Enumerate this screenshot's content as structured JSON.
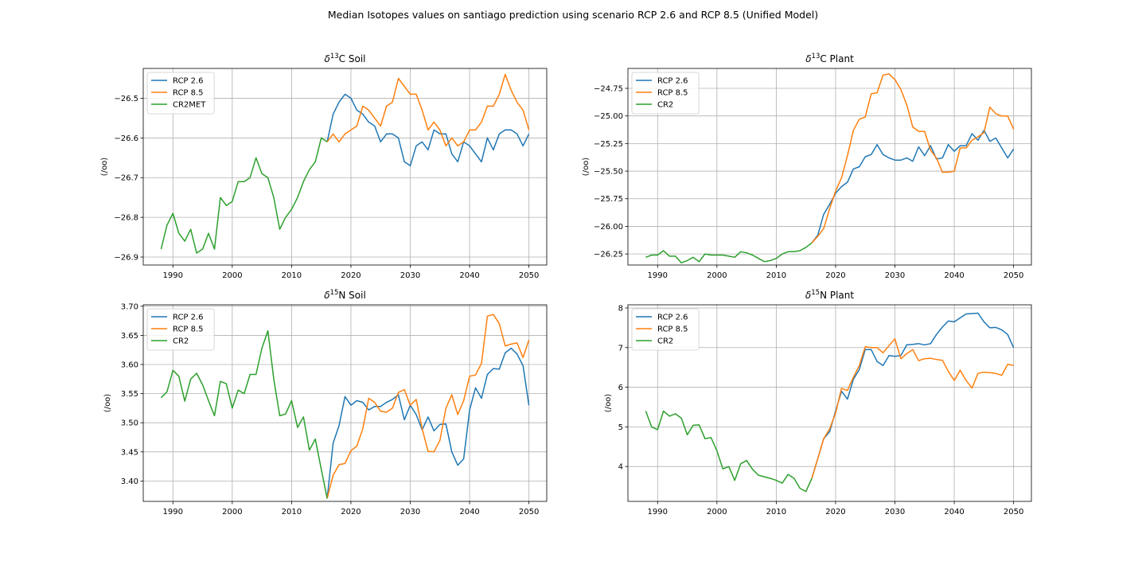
{
  "figure": {
    "suptitle": "Median Isotopes values on santiago prediction using scenario RCP 2.6 and RCP 8.5 (Unified Model)"
  },
  "colors": {
    "rcp26": "#1f77b4",
    "rcp85": "#ff7f0e",
    "historic": "#2ca02c",
    "grid": "#b0b0b0"
  },
  "chart_data": [
    {
      "type": "line",
      "title_main": "δ",
      "title_sup": "13",
      "title_rest": "C Soil",
      "ylabel": "(/oo)",
      "xlim": [
        1985,
        2053
      ],
      "ylim": [
        -26.92,
        -26.425
      ],
      "xticks": [
        1990,
        2000,
        2010,
        2020,
        2030,
        2040,
        2050
      ],
      "yticks": [
        -26.9,
        -26.8,
        -26.7,
        -26.6,
        -26.5
      ],
      "ytick_labels": [
        "−26.9",
        "−26.8",
        "−26.7",
        "−26.6",
        "−26.5"
      ],
      "grid": true,
      "legend": "top-left",
      "series": [
        {
          "name": "RCP 2.6",
          "color": "#1f77b4",
          "x": [
            2016,
            2017,
            2018,
            2019,
            2020,
            2021,
            2022,
            2023,
            2024,
            2025,
            2026,
            2027,
            2028,
            2029,
            2030,
            2031,
            2032,
            2033,
            2034,
            2035,
            2036,
            2037,
            2038,
            2039,
            2040,
            2041,
            2042,
            2043,
            2044,
            2045,
            2046,
            2047,
            2048,
            2049,
            2050
          ],
          "y": [
            -26.61,
            -26.54,
            -26.51,
            -26.49,
            -26.5,
            -26.53,
            -26.54,
            -26.56,
            -26.57,
            -26.61,
            -26.59,
            -26.59,
            -26.6,
            -26.66,
            -26.67,
            -26.62,
            -26.61,
            -26.63,
            -26.58,
            -26.59,
            -26.59,
            -26.64,
            -26.66,
            -26.61,
            -26.62,
            -26.64,
            -26.66,
            -26.6,
            -26.63,
            -26.59,
            -26.58,
            -26.58,
            -26.59,
            -26.62,
            -26.59
          ]
        },
        {
          "name": "RCP 8.5",
          "color": "#ff7f0e",
          "x": [
            2016,
            2017,
            2018,
            2019,
            2020,
            2021,
            2022,
            2023,
            2024,
            2025,
            2026,
            2027,
            2028,
            2029,
            2030,
            2031,
            2032,
            2033,
            2034,
            2035,
            2036,
            2037,
            2038,
            2039,
            2040,
            2041,
            2042,
            2043,
            2044,
            2045,
            2046,
            2047,
            2048,
            2049,
            2050
          ],
          "y": [
            -26.61,
            -26.59,
            -26.61,
            -26.59,
            -26.58,
            -26.57,
            -26.52,
            -26.53,
            -26.55,
            -26.57,
            -26.52,
            -26.51,
            -26.45,
            -26.47,
            -26.49,
            -26.49,
            -26.53,
            -26.58,
            -26.56,
            -26.58,
            -26.62,
            -26.6,
            -26.62,
            -26.61,
            -26.58,
            -26.58,
            -26.56,
            -26.52,
            -26.52,
            -26.49,
            -26.44,
            -26.48,
            -26.51,
            -26.53,
            -26.58
          ]
        },
        {
          "name": "CR2MET",
          "color": "#2ca02c",
          "x": [
            1988,
            1989,
            1990,
            1991,
            1992,
            1993,
            1994,
            1995,
            1996,
            1997,
            1998,
            1999,
            2000,
            2001,
            2002,
            2003,
            2004,
            2005,
            2006,
            2007,
            2008,
            2009,
            2010,
            2011,
            2012,
            2013,
            2014,
            2015,
            2016
          ],
          "y": [
            -26.88,
            -26.82,
            -26.79,
            -26.84,
            -26.86,
            -26.83,
            -26.89,
            -26.88,
            -26.84,
            -26.88,
            -26.75,
            -26.77,
            -26.76,
            -26.71,
            -26.71,
            -26.7,
            -26.65,
            -26.69,
            -26.7,
            -26.75,
            -26.83,
            -26.8,
            -26.78,
            -26.75,
            -26.71,
            -26.68,
            -26.66,
            -26.6,
            -26.61
          ]
        }
      ]
    },
    {
      "type": "line",
      "title_main": "δ",
      "title_sup": "13",
      "title_rest": "C Plant",
      "ylabel": "(/oo)",
      "xlim": [
        1985,
        2053
      ],
      "ylim": [
        -26.35,
        -24.57
      ],
      "xticks": [
        1990,
        2000,
        2010,
        2020,
        2030,
        2040,
        2050
      ],
      "yticks": [
        -26.25,
        -26.0,
        -25.75,
        -25.5,
        -25.25,
        -25.0,
        -24.75
      ],
      "ytick_labels": [
        "−26.25",
        "−26.00",
        "−25.75",
        "−25.50",
        "−25.25",
        "−25.00",
        "−24.75"
      ],
      "grid": true,
      "legend": "top-left",
      "series": [
        {
          "name": "RCP 2.6",
          "color": "#1f77b4",
          "x": [
            2016,
            2017,
            2018,
            2019,
            2020,
            2021,
            2022,
            2023,
            2024,
            2025,
            2026,
            2027,
            2028,
            2029,
            2030,
            2031,
            2032,
            2033,
            2034,
            2035,
            2036,
            2037,
            2038,
            2039,
            2040,
            2041,
            2042,
            2043,
            2044,
            2045,
            2046,
            2047,
            2048,
            2049,
            2050
          ],
          "y": [
            -26.15,
            -26.08,
            -25.89,
            -25.8,
            -25.7,
            -25.64,
            -25.6,
            -25.48,
            -25.46,
            -25.37,
            -25.35,
            -25.26,
            -25.35,
            -25.38,
            -25.4,
            -25.4,
            -25.38,
            -25.41,
            -25.28,
            -25.36,
            -25.27,
            -25.39,
            -25.38,
            -25.26,
            -25.32,
            -25.27,
            -25.27,
            -25.16,
            -25.22,
            -25.13,
            -25.23,
            -25.2,
            -25.29,
            -25.38,
            -25.3
          ]
        },
        {
          "name": "RCP 8.5",
          "color": "#ff7f0e",
          "x": [
            2016,
            2017,
            2018,
            2019,
            2020,
            2021,
            2022,
            2023,
            2024,
            2025,
            2026,
            2027,
            2028,
            2029,
            2030,
            2031,
            2032,
            2033,
            2034,
            2035,
            2036,
            2037,
            2038,
            2039,
            2040,
            2041,
            2042,
            2043,
            2044,
            2045,
            2046,
            2047,
            2048,
            2049,
            2050
          ],
          "y": [
            -26.15,
            -26.09,
            -26.02,
            -25.84,
            -25.68,
            -25.56,
            -25.36,
            -25.13,
            -25.03,
            -25.01,
            -24.8,
            -24.79,
            -24.63,
            -24.62,
            -24.67,
            -24.76,
            -24.9,
            -25.1,
            -25.14,
            -25.14,
            -25.31,
            -25.38,
            -25.51,
            -25.51,
            -25.5,
            -25.29,
            -25.29,
            -25.22,
            -25.19,
            -25.15,
            -24.92,
            -24.98,
            -25.0,
            -25.0,
            -25.12
          ]
        },
        {
          "name": "CR2",
          "color": "#2ca02c",
          "x": [
            1988,
            1989,
            1990,
            1991,
            1992,
            1993,
            1994,
            1995,
            1996,
            1997,
            1998,
            1999,
            2000,
            2001,
            2002,
            2003,
            2004,
            2005,
            2006,
            2007,
            2008,
            2009,
            2010,
            2011,
            2012,
            2013,
            2014,
            2015,
            2016
          ],
          "y": [
            -26.28,
            -26.26,
            -26.26,
            -26.22,
            -26.27,
            -26.27,
            -26.33,
            -26.31,
            -26.28,
            -26.32,
            -26.25,
            -26.26,
            -26.26,
            -26.26,
            -26.27,
            -26.28,
            -26.23,
            -26.24,
            -26.26,
            -26.29,
            -26.32,
            -26.31,
            -26.29,
            -26.25,
            -26.23,
            -26.23,
            -26.22,
            -26.19,
            -26.15
          ]
        }
      ]
    },
    {
      "type": "line",
      "title_main": "δ",
      "title_sup": "15",
      "title_rest": "N Soil",
      "ylabel": "(/oo)",
      "xlim": [
        1985,
        2053
      ],
      "ylim": [
        3.365,
        3.7025
      ],
      "xticks": [
        1990,
        2000,
        2010,
        2020,
        2030,
        2040,
        2050
      ],
      "yticks": [
        3.4,
        3.45,
        3.5,
        3.55,
        3.6,
        3.65,
        3.7
      ],
      "ytick_labels": [
        "3.40",
        "3.45",
        "3.50",
        "3.55",
        "3.60",
        "3.65",
        "3.70"
      ],
      "grid": true,
      "legend": "top-left",
      "series": [
        {
          "name": "RCP 2.6",
          "color": "#1f77b4",
          "x": [
            2016,
            2017,
            2018,
            2019,
            2020,
            2021,
            2022,
            2023,
            2024,
            2025,
            2026,
            2027,
            2028,
            2029,
            2030,
            2031,
            2032,
            2033,
            2034,
            2035,
            2036,
            2037,
            2038,
            2039,
            2040,
            2041,
            2042,
            2043,
            2044,
            2045,
            2046,
            2047,
            2048,
            2049,
            2050
          ],
          "y": [
            3.37,
            3.465,
            3.495,
            3.545,
            3.53,
            3.538,
            3.535,
            3.522,
            3.528,
            3.528,
            3.535,
            3.54,
            3.548,
            3.505,
            3.53,
            3.514,
            3.488,
            3.51,
            3.486,
            3.497,
            3.498,
            3.45,
            3.427,
            3.438,
            3.522,
            3.56,
            3.542,
            3.583,
            3.593,
            3.592,
            3.62,
            3.628,
            3.618,
            3.598,
            3.53
          ]
        },
        {
          "name": "RCP 8.5",
          "color": "#ff7f0e",
          "x": [
            2016,
            2017,
            2018,
            2019,
            2020,
            2021,
            2022,
            2023,
            2024,
            2025,
            2026,
            2027,
            2028,
            2029,
            2030,
            2031,
            2032,
            2033,
            2034,
            2035,
            2036,
            2037,
            2038,
            2039,
            2040,
            2041,
            2042,
            2043,
            2044,
            2045,
            2046,
            2047,
            2048,
            2049,
            2050
          ],
          "y": [
            3.37,
            3.41,
            3.428,
            3.43,
            3.452,
            3.46,
            3.49,
            3.542,
            3.535,
            3.52,
            3.518,
            3.525,
            3.552,
            3.557,
            3.53,
            3.54,
            3.49,
            3.451,
            3.45,
            3.47,
            3.525,
            3.548,
            3.514,
            3.538,
            3.58,
            3.582,
            3.602,
            3.683,
            3.686,
            3.67,
            3.632,
            3.635,
            3.637,
            3.612,
            3.642
          ]
        },
        {
          "name": "CR2",
          "color": "#2ca02c",
          "x": [
            1988,
            1989,
            1990,
            1991,
            1992,
            1993,
            1994,
            1995,
            1996,
            1997,
            1998,
            1999,
            2000,
            2001,
            2002,
            2003,
            2004,
            2005,
            2006,
            2007,
            2008,
            2009,
            2010,
            2011,
            2012,
            2013,
            2014,
            2015,
            2016
          ],
          "y": [
            3.543,
            3.553,
            3.59,
            3.58,
            3.537,
            3.575,
            3.585,
            3.565,
            3.538,
            3.512,
            3.571,
            3.567,
            3.525,
            3.556,
            3.55,
            3.583,
            3.583,
            3.628,
            3.658,
            3.575,
            3.512,
            3.515,
            3.538,
            3.492,
            3.51,
            3.453,
            3.472,
            3.42,
            3.37
          ]
        }
      ]
    },
    {
      "type": "line",
      "title_main": "δ",
      "title_sup": "15",
      "title_rest": "N Plant",
      "ylabel": "(/oo)",
      "xlim": [
        1985,
        2053
      ],
      "ylim": [
        3.12,
        8.08
      ],
      "xticks": [
        1990,
        2000,
        2010,
        2020,
        2030,
        2040,
        2050
      ],
      "yticks": [
        4,
        5,
        6,
        7,
        8
      ],
      "ytick_labels": [
        "4",
        "5",
        "6",
        "7",
        "8"
      ],
      "grid": true,
      "legend": "top-left",
      "series": [
        {
          "name": "RCP 2.6",
          "color": "#1f77b4",
          "x": [
            2016,
            2017,
            2018,
            2019,
            2020,
            2021,
            2022,
            2023,
            2024,
            2025,
            2026,
            2027,
            2028,
            2029,
            2030,
            2031,
            2032,
            2033,
            2034,
            2035,
            2036,
            2037,
            2038,
            2039,
            2040,
            2041,
            2042,
            2043,
            2044,
            2045,
            2046,
            2047,
            2048,
            2049,
            2050
          ],
          "y": [
            3.7,
            4.2,
            4.7,
            4.88,
            5.4,
            5.9,
            5.7,
            6.2,
            6.45,
            6.95,
            6.95,
            6.65,
            6.55,
            6.8,
            6.78,
            6.8,
            7.07,
            7.08,
            7.1,
            7.07,
            7.1,
            7.33,
            7.52,
            7.67,
            7.65,
            7.75,
            7.85,
            7.86,
            7.87,
            7.65,
            7.5,
            7.51,
            7.45,
            7.33,
            7.0
          ]
        },
        {
          "name": "RCP 8.5",
          "color": "#ff7f0e",
          "x": [
            2016,
            2017,
            2018,
            2019,
            2020,
            2021,
            2022,
            2023,
            2024,
            2025,
            2026,
            2027,
            2028,
            2029,
            2030,
            2031,
            2032,
            2033,
            2034,
            2035,
            2036,
            2037,
            2038,
            2039,
            2040,
            2041,
            2042,
            2043,
            2044,
            2045,
            2046,
            2047,
            2048,
            2049,
            2050
          ],
          "y": [
            3.7,
            4.2,
            4.7,
            4.95,
            5.35,
            5.97,
            5.92,
            6.25,
            6.55,
            7.02,
            7.0,
            7.0,
            6.87,
            7.05,
            7.22,
            6.72,
            6.85,
            6.95,
            6.67,
            6.72,
            6.73,
            6.7,
            6.68,
            6.4,
            6.17,
            6.43,
            6.17,
            5.98,
            6.35,
            6.38,
            6.37,
            6.35,
            6.3,
            6.58,
            6.55
          ]
        },
        {
          "name": "CR2",
          "color": "#2ca02c",
          "x": [
            1988,
            1989,
            1990,
            1991,
            1992,
            1993,
            1994,
            1995,
            1996,
            1997,
            1998,
            1999,
            2000,
            2001,
            2002,
            2003,
            2004,
            2005,
            2006,
            2007,
            2008,
            2009,
            2010,
            2011,
            2012,
            2013,
            2014,
            2015,
            2016
          ],
          "y": [
            5.4,
            5.0,
            4.93,
            5.4,
            5.27,
            5.33,
            5.22,
            4.8,
            5.04,
            5.05,
            4.7,
            4.73,
            4.4,
            3.94,
            4.0,
            3.65,
            4.07,
            4.15,
            3.93,
            3.78,
            3.74,
            3.7,
            3.65,
            3.58,
            3.8,
            3.7,
            3.45,
            3.37,
            3.7
          ]
        }
      ]
    }
  ]
}
